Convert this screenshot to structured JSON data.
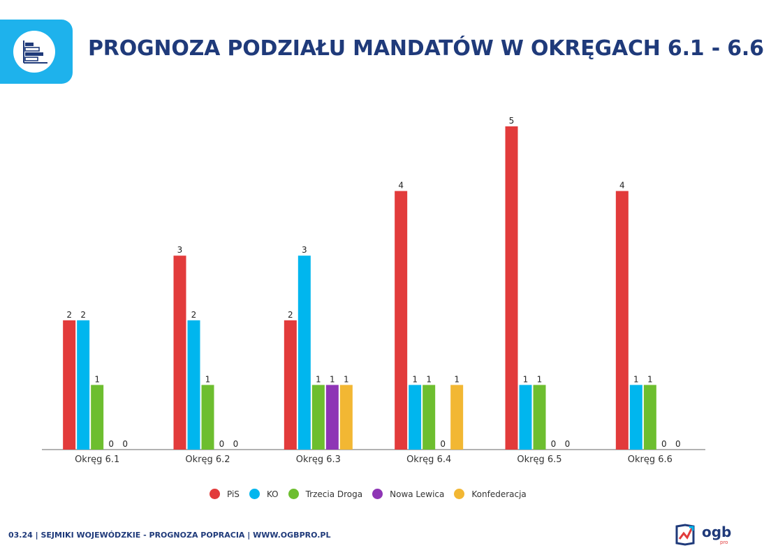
{
  "header": {
    "title": "PROGNOZA PODZIAŁU MANDATÓW W OKRĘGACH 6.1 - 6.6",
    "icon": "bar-chart-icon",
    "accent_color": "#1EB2EC",
    "title_color": "#1F3A7A"
  },
  "chart_data": {
    "type": "bar",
    "title": "",
    "xlabel": "",
    "ylabel": "",
    "ylim": [
      0,
      5
    ],
    "grid": false,
    "legend_position": "bottom",
    "categories": [
      "Okręg 6.1",
      "Okręg 6.2",
      "Okręg 6.3",
      "Okręg 6.4",
      "Okręg 6.5",
      "Okręg 6.6"
    ],
    "series": [
      {
        "name": "PiS",
        "color": "#E23B3B",
        "values": [
          2,
          3,
          2,
          4,
          5,
          4
        ]
      },
      {
        "name": "KO",
        "color": "#00B6EE",
        "values": [
          2,
          2,
          3,
          1,
          1,
          1
        ]
      },
      {
        "name": "Trzecia Droga",
        "color": "#6DBE2F",
        "values": [
          1,
          1,
          1,
          1,
          1,
          1
        ]
      },
      {
        "name": "Nowa Lewica",
        "color": "#8E35B5",
        "values": [
          0,
          0,
          1,
          0,
          0,
          0
        ]
      },
      {
        "name": "Konfederacja",
        "color": "#F2B733",
        "values": [
          0,
          0,
          1,
          1,
          0,
          0
        ]
      }
    ],
    "labels": [
      [
        "2",
        "2",
        "1",
        "0",
        "0"
      ],
      [
        "3",
        "2",
        "1",
        "0",
        "0"
      ],
      [
        "2",
        "3",
        "1",
        "1",
        "1"
      ],
      [
        "4",
        "1",
        "1",
        "0",
        "1"
      ],
      [
        "5",
        "1",
        "1",
        "0",
        "0"
      ],
      [
        "4",
        "1",
        "1",
        "0",
        "0"
      ]
    ]
  },
  "footer": {
    "text": "03.24 | SEJMIKI WOJEWÓDZKIE - PROGNOZA POPRACIA | WWW.OGBPRO.PL"
  },
  "logo": {
    "name": "ogb",
    "sub": "pro",
    "icon": "ogb-logo-icon"
  }
}
